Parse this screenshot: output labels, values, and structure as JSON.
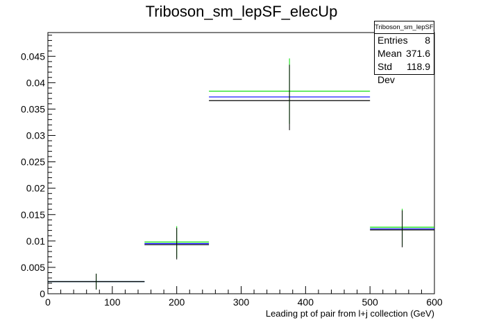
{
  "chart_data": {
    "type": "histogram",
    "title": "Triboson_sm_lepSF_elecUp",
    "xlabel": "Leading pt of pair from l+j collection (GeV)",
    "ylabel": "",
    "xlim": [
      0,
      600
    ],
    "ylim": [
      0,
      0.0495
    ],
    "x_ticks": [
      0,
      100,
      200,
      300,
      400,
      500,
      600
    ],
    "y_ticks": [
      0,
      0.005,
      0.01,
      0.015,
      0.02,
      0.025,
      0.03,
      0.035,
      0.04,
      0.045
    ],
    "y_tick_labels": [
      "0",
      "0.005",
      "0.01",
      "0.015",
      "0.02",
      "0.025",
      "0.03",
      "0.035",
      "0.04",
      "0.045"
    ],
    "bins": [
      {
        "x_low": 0,
        "x_high": 150,
        "x_center": 75,
        "value": 0.0023,
        "err": 0.0015
      },
      {
        "x_low": 150,
        "x_high": 250,
        "x_center": 200,
        "value": 0.0095,
        "err": 0.003
      },
      {
        "x_low": 250,
        "x_high": 500,
        "x_center": 375,
        "value": 0.0372,
        "err": 0.0062
      },
      {
        "x_low": 500,
        "x_high": 600,
        "x_center": 550,
        "value": 0.0123,
        "err": 0.0035
      }
    ],
    "series": [
      {
        "name": "",
        "color": "#000000",
        "values": [
          0.0023,
          0.0093,
          0.0366,
          0.0121
        ]
      },
      {
        "name": "",
        "color": "#0000ff",
        "values": [
          0.0023,
          0.0095,
          0.0373,
          0.0123
        ]
      },
      {
        "name": "",
        "color": "#00dd00",
        "values": [
          0.0023,
          0.0098,
          0.0384,
          0.0126
        ]
      }
    ],
    "grid": false
  },
  "stats": {
    "name": "Triboson_sm_lepSF_elecUp",
    "rows": [
      {
        "label": "Entries",
        "value": "8"
      },
      {
        "label": "Mean",
        "value": "371.6"
      },
      {
        "label": "Std Dev",
        "value": "118.9"
      }
    ]
  }
}
